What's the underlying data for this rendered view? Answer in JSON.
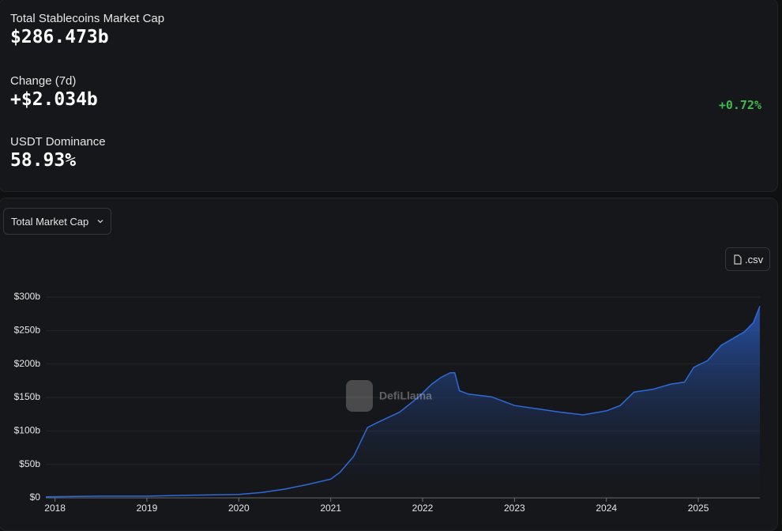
{
  "stats": [
    {
      "label": "Total Stablecoins Market Cap",
      "value": "$286.473b"
    },
    {
      "label": "Change (7d)",
      "value": "+$2.034b",
      "change": "+0.72%"
    },
    {
      "label": "USDT Dominance",
      "value": "58.93%"
    }
  ],
  "controls": {
    "metric": "Total Market Cap",
    "download": ".csv"
  },
  "watermark": "DefiLlama",
  "chart_data": {
    "type": "area",
    "x": [
      2017.9,
      2018.5,
      2019.0,
      2019.5,
      2020.0,
      2020.25,
      2020.5,
      2020.75,
      2021.0,
      2021.1,
      2021.25,
      2021.4,
      2021.5,
      2021.75,
      2021.95,
      2022.1,
      2022.2,
      2022.3,
      2022.35,
      2022.4,
      2022.5,
      2022.75,
      2023.0,
      2023.25,
      2023.5,
      2023.75,
      2024.0,
      2024.15,
      2024.3,
      2024.5,
      2024.7,
      2024.85,
      2024.95,
      2025.1,
      2025.25,
      2025.5,
      2025.6,
      2025.67
    ],
    "values": [
      1.5,
      2.5,
      2.5,
      4,
      5,
      8,
      13,
      20,
      28,
      38,
      62,
      105,
      112,
      128,
      150,
      170,
      180,
      187,
      187,
      160,
      155,
      151,
      138,
      133,
      128,
      124,
      130,
      138,
      158,
      162,
      170,
      173,
      195,
      205,
      228,
      248,
      262,
      286.5
    ],
    "color": "#2f6ad8",
    "xlim": [
      2017.9,
      2025.67
    ],
    "xticks": [
      2018,
      2019,
      2020,
      2021,
      2022,
      2023,
      2024,
      2025
    ],
    "ylim": [
      0,
      300
    ],
    "yticks": [
      {
        "value": 0,
        "label": "$0"
      },
      {
        "value": 50,
        "label": "$50b"
      },
      {
        "value": 100,
        "label": "$100b"
      },
      {
        "value": 150,
        "label": "$150b"
      },
      {
        "value": 200,
        "label": "$200b"
      },
      {
        "value": 250,
        "label": "$250b"
      },
      {
        "value": 300,
        "label": "$300b"
      }
    ],
    "grid": true
  }
}
